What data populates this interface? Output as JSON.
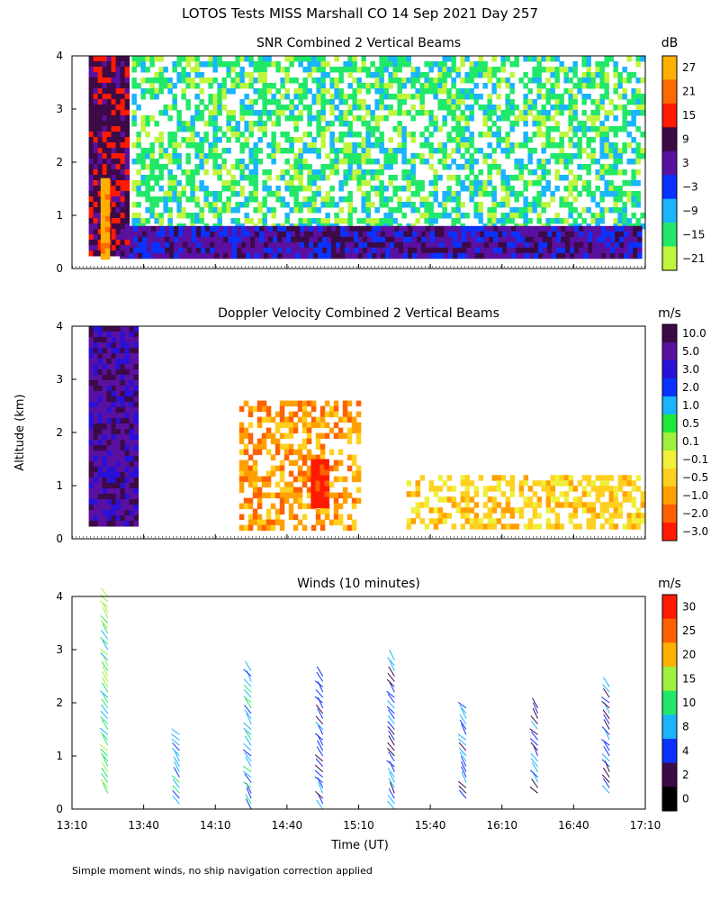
{
  "title": "LOTOS Tests MISS Marshall CO  14 Sep 2021 Day 257",
  "footnote": "Simple moment winds, no ship navigation correction applied",
  "shared": {
    "ylabel": "Altitude (km)",
    "xlabel": "Time (UT)",
    "x_ticks": [
      "13:10",
      "13:40",
      "14:10",
      "14:40",
      "15:10",
      "15:40",
      "16:10",
      "16:40",
      "17:10"
    ],
    "x_range_minutes_utc": [
      790,
      1030
    ],
    "y_ticks": [
      "0",
      "1",
      "2",
      "3",
      "4"
    ],
    "ylim_km": [
      0,
      4
    ]
  },
  "chart_data": [
    {
      "type": "heatmap",
      "title": "SNR Combined 2 Vertical Beams",
      "unit": "dB",
      "colorbar_labels": [
        "27",
        "21",
        "15",
        "9",
        "3",
        "−3",
        "−9",
        "−15",
        "−21"
      ],
      "colorbar_colors": [
        "#ffb000",
        "#ff6a00",
        "#ff1a00",
        "#3c0a46",
        "#5a10a0",
        "#0a32ff",
        "#1ab4ff",
        "#22e86a",
        "#bff53c"
      ],
      "xlim_minutes": [
        790,
        1030
      ],
      "ylim_km": [
        0,
        4
      ],
      "data_floor_km": 0.25,
      "features": [
        {
          "name": "strong echo core",
          "t_start": "13:22",
          "t_end": "13:25",
          "alt_km": [
            0.25,
            1.7
          ],
          "value_db": 27
        },
        {
          "name": "deep high-SNR column",
          "t_start": "13:17",
          "t_end": "13:33",
          "alt_km": [
            0.25,
            4.0
          ],
          "value_db": 9
        },
        {
          "name": "boundary layer band",
          "t_start": "13:30",
          "t_end": "17:08",
          "alt_km": [
            0.25,
            0.8
          ],
          "value_db": 3
        },
        {
          "name": "patchy weak echoes aloft",
          "t_start": "13:35",
          "t_end": "17:08",
          "alt_km": [
            0.8,
            4.0
          ],
          "value_db": -15
        }
      ]
    },
    {
      "type": "heatmap",
      "title": "Doppler Velocity Combined 2 Vertical Beams",
      "unit": "m/s",
      "colorbar_labels": [
        "10.0",
        "5.0",
        "3.0",
        "2.0",
        "1.0",
        "0.5",
        "0.1",
        "−0.1",
        "−0.5",
        "−1.0",
        "−2.0",
        "−3.0"
      ],
      "colorbar_colors": [
        "#3c0a46",
        "#5a10a0",
        "#2810d8",
        "#0a32ff",
        "#1ab4ff",
        "#1ee83c",
        "#9ef03c",
        "#f0f03c",
        "#ffd020",
        "#ffa000",
        "#ff6000",
        "#ff1a00"
      ],
      "xlim_minutes": [
        790,
        1030
      ],
      "ylim_km": [
        0,
        4
      ],
      "data_floor_km": 0.25,
      "features": [
        {
          "name": "updraft column",
          "t_start": "13:17",
          "t_end": "13:36",
          "alt_km": [
            0.25,
            4.0
          ],
          "value_ms": 5.0
        },
        {
          "name": "downdraft core",
          "t_start": "14:50",
          "t_end": "14:56",
          "alt_km": [
            0.6,
            1.5
          ],
          "value_ms": -3.0
        },
        {
          "name": "weak descent region",
          "t_start": "14:20",
          "t_end": "15:10",
          "alt_km": [
            0.25,
            2.6
          ],
          "value_ms": -1.0
        },
        {
          "name": "low-level mixed region",
          "t_start": "15:30",
          "t_end": "17:08",
          "alt_km": [
            0.25,
            1.2
          ],
          "value_ms": -0.5
        }
      ]
    },
    {
      "type": "wind_barbs",
      "title": "Winds (10 minutes)",
      "unit": "m/s",
      "colorbar_labels": [
        "30",
        "25",
        "20",
        "15",
        "10",
        "8",
        "4",
        "2",
        "0"
      ],
      "colorbar_colors": [
        "#ff1a00",
        "#ff6000",
        "#ffb000",
        "#9ef03c",
        "#22e86a",
        "#1ab4ff",
        "#0a32ff",
        "#3c0a46",
        "#000000"
      ],
      "xlim_minutes": [
        790,
        1030
      ],
      "ylim_km": [
        0,
        4
      ],
      "profiles": [
        {
          "time": "13:25",
          "alt_km": [
            0.3,
            4.1
          ],
          "typical_speed_ms": 12
        },
        {
          "time": "13:55",
          "alt_km": [
            0.1,
            1.5
          ],
          "typical_speed_ms": 6
        },
        {
          "time": "14:25",
          "alt_km": [
            0.0,
            2.7
          ],
          "typical_speed_ms": 8
        },
        {
          "time": "14:55",
          "alt_km": [
            0.0,
            2.6
          ],
          "typical_speed_ms": 4
        },
        {
          "time": "15:25",
          "alt_km": [
            0.0,
            2.9
          ],
          "typical_speed_ms": 4
        },
        {
          "time": "15:55",
          "alt_km": [
            0.2,
            2.0
          ],
          "typical_speed_ms": 4
        },
        {
          "time": "16:25",
          "alt_km": [
            0.3,
            2.0
          ],
          "typical_speed_ms": 4
        },
        {
          "time": "16:55",
          "alt_km": [
            0.3,
            2.4
          ],
          "typical_speed_ms": 3
        }
      ]
    }
  ]
}
